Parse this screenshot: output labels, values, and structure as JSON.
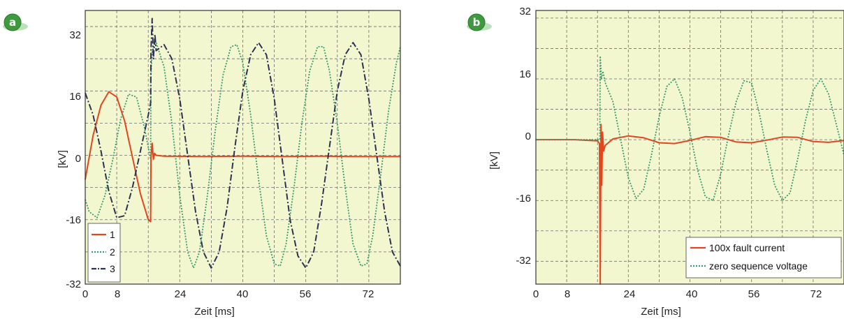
{
  "colors": {
    "plot_bg": "#f3f7cf",
    "grid": "#6d6d6d",
    "frame": "#333333",
    "badge": "#3f9a3f",
    "red": "#e4451f",
    "green": "#3a9a70",
    "navy": "#2b3252"
  },
  "chart_data": [
    {
      "panel_label": "a",
      "type": "line",
      "xlabel": "Zeit [ms]",
      "ylabel": "[kV]",
      "xlim": [
        0,
        80
      ],
      "ylim": [
        -32,
        36
      ],
      "x_ticks": [
        "0",
        "8",
        "24",
        "40",
        "56",
        "72"
      ],
      "x_tick_values": [
        0,
        8,
        24,
        40,
        56,
        72
      ],
      "y_ticks": [
        "32",
        "16",
        "0",
        "-16",
        "-32"
      ],
      "y_tick_values": [
        32,
        16,
        0,
        -16,
        -32
      ],
      "grid": true,
      "legend_position": "bottom-left",
      "series": [
        {
          "name": "1",
          "color": "#e4451f",
          "style": "solid",
          "points": [
            [
              0,
              -6
            ],
            [
              2,
              5
            ],
            [
              4,
              12.5
            ],
            [
              6,
              15.8
            ],
            [
              8,
              14.5
            ],
            [
              10,
              8.5
            ],
            [
              12,
              -0.5
            ],
            [
              14,
              -9.5
            ],
            [
              16,
              -16
            ],
            [
              16.6,
              -16.5
            ],
            [
              16.7,
              -0.5
            ],
            [
              17,
              3
            ],
            [
              17.3,
              -1
            ],
            [
              17.6,
              0.5
            ],
            [
              18,
              0
            ],
            [
              20,
              -0.2
            ],
            [
              30,
              -0.3
            ],
            [
              40,
              -0.2
            ],
            [
              50,
              -0.3
            ],
            [
              60,
              -0.2
            ],
            [
              70,
              -0.3
            ],
            [
              80,
              -0.3
            ]
          ]
        },
        {
          "name": "2",
          "color": "#3a9a70",
          "style": "dotted",
          "points": [
            [
              0,
              -11
            ],
            [
              1,
              -14
            ],
            [
              3,
              -15.5
            ],
            [
              5,
              -10
            ],
            [
              7,
              -1
            ],
            [
              9,
              9
            ],
            [
              11,
              15.2
            ],
            [
              13,
              14.5
            ],
            [
              15,
              7
            ],
            [
              16.6,
              -1
            ],
            [
              16.7,
              20
            ],
            [
              17,
              26
            ],
            [
              18,
              28
            ],
            [
              20,
              22
            ],
            [
              22,
              8
            ],
            [
              24,
              -10
            ],
            [
              26,
              -24
            ],
            [
              27.5,
              -28
            ],
            [
              29,
              -24
            ],
            [
              31,
              -10
            ],
            [
              33,
              6
            ],
            [
              35,
              20
            ],
            [
              37,
              27
            ],
            [
              38.5,
              27.5
            ],
            [
              40,
              23
            ],
            [
              42,
              10
            ],
            [
              44,
              -6
            ],
            [
              46,
              -20
            ],
            [
              48,
              -27
            ],
            [
              49.5,
              -27.5
            ],
            [
              51,
              -22
            ],
            [
              53,
              -8
            ],
            [
              55,
              8
            ],
            [
              57,
              21
            ],
            [
              59,
              27
            ],
            [
              60.5,
              27
            ],
            [
              62,
              21
            ],
            [
              64,
              8
            ],
            [
              66,
              -8
            ],
            [
              68,
              -22
            ],
            [
              70,
              -27.5
            ],
            [
              71.5,
              -27
            ],
            [
              73,
              -20
            ],
            [
              75,
              -5
            ],
            [
              77,
              11
            ],
            [
              79,
              23
            ],
            [
              80,
              27
            ]
          ]
        },
        {
          "name": "3",
          "color": "#2b3252",
          "style": "dashdot",
          "points": [
            [
              0,
              15.5
            ],
            [
              2,
              10
            ],
            [
              4,
              1
            ],
            [
              6,
              -9
            ],
            [
              8,
              -15.5
            ],
            [
              10,
              -15
            ],
            [
              12,
              -8
            ],
            [
              14,
              1
            ],
            [
              16,
              10
            ],
            [
              16.6,
              13
            ],
            [
              16.7,
              26
            ],
            [
              17,
              34
            ],
            [
              17.3,
              24
            ],
            [
              17.7,
              30
            ],
            [
              18,
              26
            ],
            [
              20,
              27.5
            ],
            [
              22,
              24
            ],
            [
              24,
              14
            ],
            [
              26,
              0
            ],
            [
              28,
              -14
            ],
            [
              30,
              -24
            ],
            [
              32,
              -28
            ],
            [
              34,
              -24
            ],
            [
              36,
              -13
            ],
            [
              38,
              2
            ],
            [
              40,
              16
            ],
            [
              42,
              25
            ],
            [
              44,
              28
            ],
            [
              46,
              25
            ],
            [
              48,
              14
            ],
            [
              50,
              -1
            ],
            [
              52,
              -16
            ],
            [
              54,
              -25
            ],
            [
              56,
              -28
            ],
            [
              58,
              -24
            ],
            [
              60,
              -12
            ],
            [
              62,
              2
            ],
            [
              64,
              16
            ],
            [
              66,
              25
            ],
            [
              68,
              28
            ],
            [
              70,
              25
            ],
            [
              72,
              14
            ],
            [
              74,
              0
            ],
            [
              76,
              -14
            ],
            [
              78,
              -24
            ],
            [
              80,
              -27.5
            ]
          ]
        }
      ]
    },
    {
      "panel_label": "b",
      "type": "line",
      "xlabel": "Zeit [ms]",
      "ylabel": "[kV]",
      "xlim": [
        0,
        80
      ],
      "ylim": [
        -38,
        34
      ],
      "x_ticks": [
        "0",
        "8",
        "24",
        "40",
        "56",
        "72"
      ],
      "x_tick_values": [
        0,
        8,
        24,
        40,
        56,
        72
      ],
      "y_ticks": [
        "32",
        "16",
        "0",
        "-16",
        "-32"
      ],
      "y_tick_values": [
        32,
        16,
        0,
        -16,
        -32
      ],
      "grid": true,
      "legend_position": "bottom-right",
      "series": [
        {
          "name": "100x fault current",
          "color": "#e4451f",
          "style": "solid",
          "points": [
            [
              0,
              0
            ],
            [
              10,
              0
            ],
            [
              14,
              -0.2
            ],
            [
              16,
              -0.3
            ],
            [
              16.5,
              -1
            ],
            [
              16.7,
              -38
            ],
            [
              16.9,
              4
            ],
            [
              17.1,
              -12
            ],
            [
              17.3,
              2
            ],
            [
              17.6,
              -3
            ],
            [
              18,
              -1.5
            ],
            [
              20,
              0.2
            ],
            [
              24,
              1
            ],
            [
              28,
              0.5
            ],
            [
              32,
              -0.8
            ],
            [
              36,
              -1
            ],
            [
              40,
              -0.2
            ],
            [
              44,
              0.8
            ],
            [
              48,
              0.6
            ],
            [
              52,
              -0.6
            ],
            [
              56,
              -0.8
            ],
            [
              60,
              -0.1
            ],
            [
              64,
              0.7
            ],
            [
              68,
              0.6
            ],
            [
              72,
              -0.5
            ],
            [
              76,
              -0.7
            ],
            [
              80,
              -0.2
            ]
          ]
        },
        {
          "name": "zero sequence voltage",
          "color": "#3a9a70",
          "style": "dotted",
          "points": [
            [
              0,
              0
            ],
            [
              16,
              0
            ],
            [
              16.6,
              0
            ],
            [
              16.7,
              22
            ],
            [
              17,
              16
            ],
            [
              17.4,
              18
            ],
            [
              18,
              15
            ],
            [
              20,
              10
            ],
            [
              22,
              0
            ],
            [
              24,
              -10
            ],
            [
              26,
              -15.5
            ],
            [
              28,
              -13
            ],
            [
              30,
              -4
            ],
            [
              32,
              6
            ],
            [
              34,
              14
            ],
            [
              36,
              16
            ],
            [
              38,
              11
            ],
            [
              40,
              2
            ],
            [
              42,
              -8
            ],
            [
              44,
              -15
            ],
            [
              46,
              -16
            ],
            [
              48,
              -9
            ],
            [
              50,
              1
            ],
            [
              52,
              10
            ],
            [
              54,
              15.5
            ],
            [
              56,
              15
            ],
            [
              58,
              7
            ],
            [
              60,
              -3
            ],
            [
              62,
              -12
            ],
            [
              64,
              -16
            ],
            [
              66,
              -14
            ],
            [
              68,
              -5
            ],
            [
              70,
              5
            ],
            [
              72,
              13
            ],
            [
              74,
              16
            ],
            [
              76,
              12
            ],
            [
              78,
              4
            ],
            [
              80,
              -4
            ]
          ]
        }
      ]
    }
  ]
}
